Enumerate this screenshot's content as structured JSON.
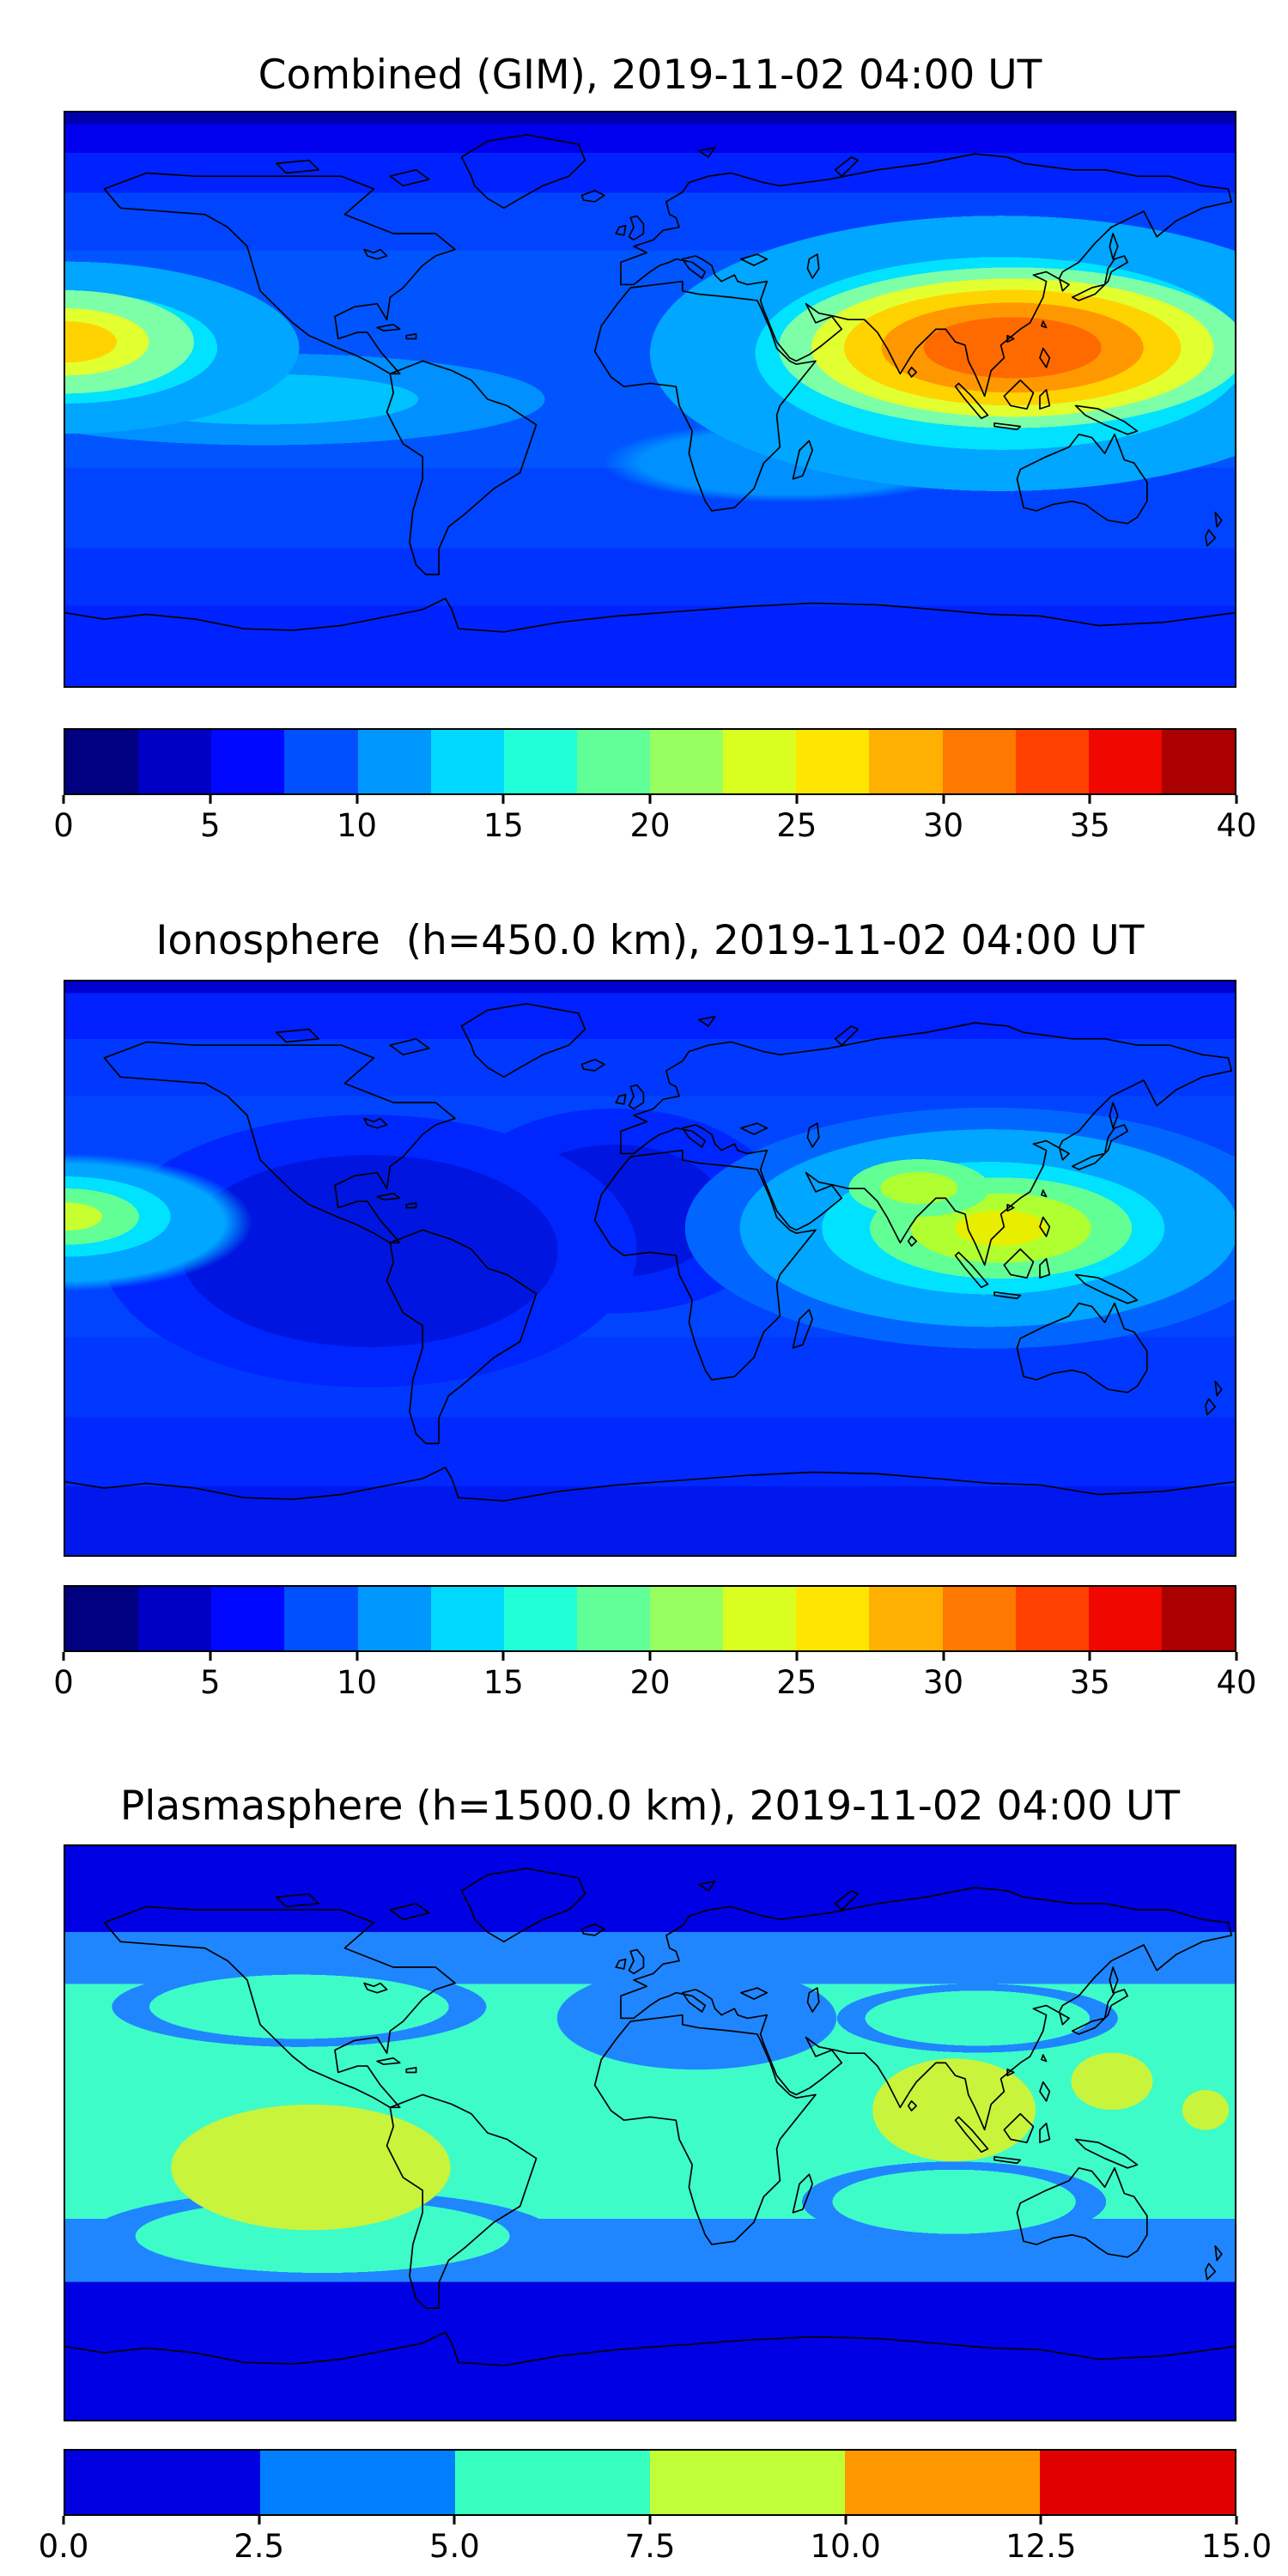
{
  "page": {
    "background": "#ffffff"
  },
  "panels": [
    {
      "id": "combined",
      "title": "Combined (GIM), 2019-11-02 04:00 UT",
      "colorbar": {
        "min": 0,
        "max": 40,
        "ticks": [
          "0",
          "5",
          "10",
          "15",
          "20",
          "25",
          "30",
          "35",
          "40"
        ],
        "segment_colors": [
          "#000080",
          "#0000c4",
          "#0008ff",
          "#0050ff",
          "#0098ff",
          "#00d8ff",
          "#20ffd8",
          "#60ff98",
          "#98ff60",
          "#d8ff20",
          "#ffe600",
          "#ffb000",
          "#ff7800",
          "#ff4000",
          "#f00800",
          "#aa0000"
        ]
      }
    },
    {
      "id": "ionosphere",
      "title": "Ionosphere  (h=450.0 km), 2019-11-02 04:00 UT",
      "colorbar": {
        "min": 0,
        "max": 40,
        "ticks": [
          "0",
          "5",
          "10",
          "15",
          "20",
          "25",
          "30",
          "35",
          "40"
        ],
        "segment_colors": [
          "#000080",
          "#0000c4",
          "#0008ff",
          "#0050ff",
          "#0098ff",
          "#00d8ff",
          "#20ffd8",
          "#60ff98",
          "#98ff60",
          "#d8ff20",
          "#ffe600",
          "#ffb000",
          "#ff7800",
          "#ff4000",
          "#f00800",
          "#aa0000"
        ]
      }
    },
    {
      "id": "plasmasphere",
      "title": "Plasmasphere (h=1500.0 km), 2019-11-02 04:00 UT",
      "colorbar": {
        "min": 0,
        "max": 15,
        "ticks": [
          "0.0",
          "2.5",
          "5.0",
          "7.5",
          "10.0",
          "12.5",
          "15.0"
        ],
        "segment_colors": [
          "#0000e0",
          "#0080ff",
          "#37ffc0",
          "#c0ff37",
          "#ff9800",
          "#e00000"
        ]
      }
    }
  ],
  "chart_data": [
    {
      "type": "heatmap",
      "variant": "filled_contour_world_map",
      "title": "Combined (GIM), 2019-11-02 04:00 UT",
      "timestamp": "2019-11-02 04:00 UT",
      "projection": "equirectangular",
      "lon_range": [
        -180,
        180
      ],
      "lat_range": [
        -90,
        90
      ],
      "colormap": "jet",
      "coastlines": true,
      "levels": {
        "min": 0,
        "max": 40,
        "step": 2.5
      },
      "colorbar_ticks": [
        0,
        5,
        10,
        15,
        20,
        25,
        30,
        35,
        40
      ],
      "features": [
        {
          "name": "primary-maximum",
          "region": "Southeast Asia / Philippines / Indonesia / northern Australia",
          "lon": 120,
          "lat": 5,
          "approx_peak": 34
        },
        {
          "name": "secondary-maximum",
          "region": "central Pacific at western map edge",
          "lon": -178,
          "lat": 15,
          "approx_peak": 27
        },
        {
          "name": "equatorial-band",
          "region": "low latitudes globally",
          "approx_range": [
            10,
            17.5
          ]
        },
        {
          "name": "high-latitude-minimum-north",
          "region": "Arctic",
          "approx_range": [
            0,
            5
          ]
        },
        {
          "name": "high-latitude-low-south",
          "region": "Southern Ocean and Antarctica",
          "approx_range": [
            2.5,
            7.5
          ]
        }
      ]
    },
    {
      "type": "heatmap",
      "variant": "filled_contour_world_map",
      "title": "Ionosphere  (h=450.0 km), 2019-11-02 04:00 UT",
      "timestamp": "2019-11-02 04:00 UT",
      "height_km": 450.0,
      "projection": "equirectangular",
      "lon_range": [
        -180,
        180
      ],
      "lat_range": [
        -90,
        90
      ],
      "colormap": "jet",
      "coastlines": true,
      "levels": {
        "min": 0,
        "max": 40,
        "step": 2.5
      },
      "colorbar_ticks": [
        0,
        5,
        10,
        15,
        20,
        25,
        30,
        35,
        40
      ],
      "features": [
        {
          "name": "primary-maximum",
          "region": "Southeast Asia / Philippines / Indonesia",
          "lon": 120,
          "lat": 5,
          "approx_peak": 28
        },
        {
          "name": "secondary-maximum",
          "region": "central Pacific at western map edge",
          "lon": -178,
          "lat": 12,
          "approx_peak": 23
        },
        {
          "name": "broad-minimum",
          "region": "Americas, Atlantic and Africa",
          "approx_range": [
            2.5,
            5
          ]
        },
        {
          "name": "background",
          "region": "remaining oceans",
          "approx_range": [
            5,
            10
          ]
        }
      ]
    },
    {
      "type": "heatmap",
      "variant": "filled_contour_world_map",
      "title": "Plasmasphere (h=1500.0 km), 2019-11-02 04:00 UT",
      "timestamp": "2019-11-02 04:00 UT",
      "height_km": 1500.0,
      "projection": "equirectangular",
      "lon_range": [
        -180,
        180
      ],
      "lat_range": [
        -90,
        90
      ],
      "colormap": "jet",
      "coastlines": true,
      "levels": {
        "min": 0,
        "max": 15,
        "step": 2.5
      },
      "colorbar_ticks": [
        0.0,
        2.5,
        5.0,
        7.5,
        10.0,
        12.5,
        15.0
      ],
      "features": [
        {
          "name": "plasmaspheric-band",
          "region": "low-to-mid latitudes encircling the globe",
          "approx_range": [
            5,
            7.5
          ]
        },
        {
          "name": "maximum-west",
          "region": "eastern Pacific / western South America",
          "lon": -105,
          "lat": -10,
          "approx_peak": 9
        },
        {
          "name": "maximum-east",
          "region": "Bay of Bengal / Southeast Asia",
          "lon": 95,
          "lat": 5,
          "approx_peak": 9
        },
        {
          "name": "small-maximum",
          "region": "western Pacific",
          "lon": 142,
          "lat": 16,
          "approx_peak": 8.5
        },
        {
          "name": "reduced-band-segment",
          "region": "northern Africa / Arabia",
          "approx_range": [
            2.5,
            5
          ]
        },
        {
          "name": "high-latitude-minimum",
          "region": "polar caps",
          "approx_range": [
            0,
            2.5
          ]
        }
      ]
    }
  ]
}
